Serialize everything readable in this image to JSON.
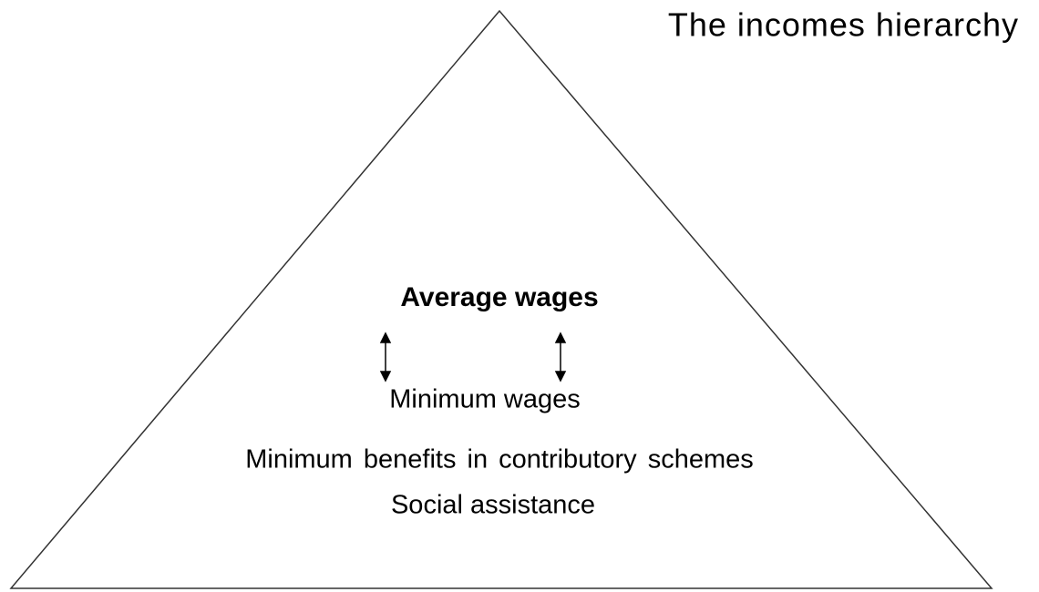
{
  "title": "The incomes hierarchy",
  "levels": [
    "Average wages",
    "Minimum wages",
    "Minimum benefits in contributory schemes",
    "Social assistance"
  ]
}
